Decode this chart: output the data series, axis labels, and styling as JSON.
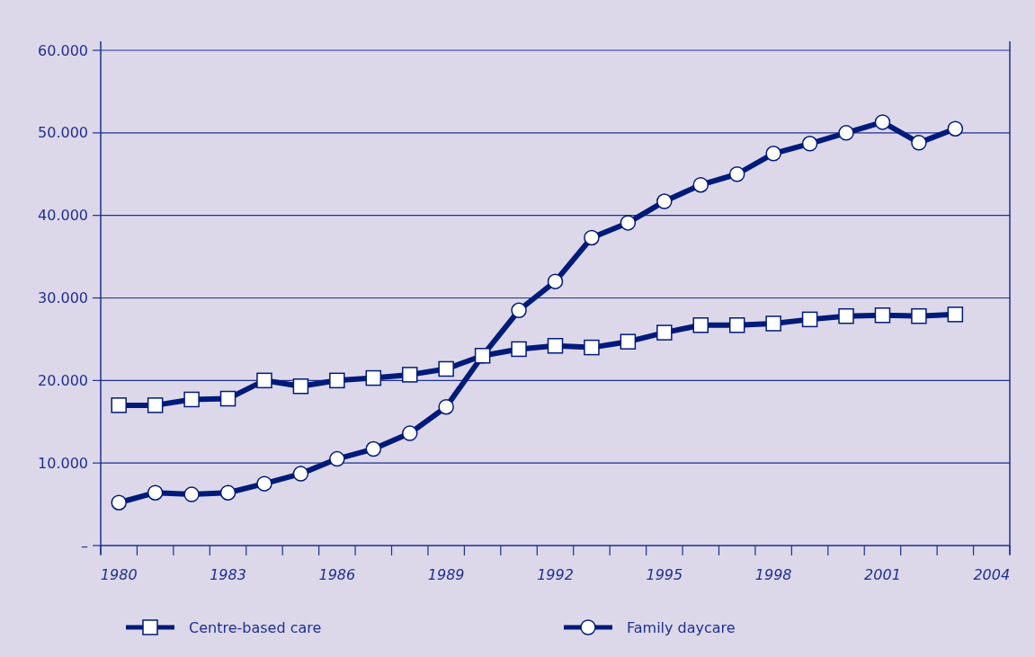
{
  "chart_data": {
    "type": "line",
    "x": [
      1980,
      1981,
      1982,
      1983,
      1984,
      1985,
      1986,
      1987,
      1988,
      1989,
      1990,
      1991,
      1992,
      1993,
      1994,
      1995,
      1996,
      1997,
      1998,
      1999,
      2000,
      2001,
      2002,
      2003
    ],
    "series": [
      {
        "name": "Centre-based care",
        "color": "#001a7a",
        "marker": "square",
        "values": [
          17000,
          17000,
          17700,
          17800,
          20000,
          19300,
          20000,
          20300,
          20700,
          21400,
          23000,
          23800,
          24200,
          24000,
          24700,
          25800,
          26700,
          26700,
          26900,
          27400,
          27800,
          27900,
          27800,
          28000
        ]
      },
      {
        "name": "Family daycare",
        "color": "#001a7a",
        "marker": "circle",
        "values": [
          5200,
          6400,
          6200,
          6400,
          7500,
          8700,
          10500,
          11700,
          13600,
          16800,
          23000,
          28500,
          32000,
          37300,
          39100,
          41700,
          43700,
          45000,
          47500,
          48700,
          50000,
          51300,
          48800,
          50500
        ]
      }
    ],
    "xlim": [
      1979.5,
      2004.5
    ],
    "xticks": [
      {
        "value": 1979.5,
        "label": null
      },
      1980,
      {
        "value": 1980.5,
        "label": null
      },
      {
        "value": 1981.5,
        "label": null
      },
      {
        "value": 1982.5,
        "label": null
      },
      1983,
      {
        "value": 1983.5,
        "label": null
      },
      {
        "value": 1984.5,
        "label": null
      },
      {
        "value": 1985.5,
        "label": null
      },
      1986,
      {
        "value": 1986.5,
        "label": null
      },
      {
        "value": 1987.5,
        "label": null
      },
      {
        "value": 1988.5,
        "label": null
      },
      1989,
      {
        "value": 1989.5,
        "label": null
      },
      {
        "value": 1990.5,
        "label": null
      },
      {
        "value": 1991.5,
        "label": null
      },
      1992,
      {
        "value": 1992.5,
        "label": null
      },
      {
        "value": 1993.5,
        "label": null
      },
      {
        "value": 1994.5,
        "label": null
      },
      1995,
      {
        "value": 1995.5,
        "label": null
      },
      {
        "value": 1996.5,
        "label": null
      },
      {
        "value": 1997.5,
        "label": null
      },
      1998,
      {
        "value": 1998.5,
        "label": null
      },
      {
        "value": 1999.5,
        "label": null
      },
      {
        "value": 2000.5,
        "label": null
      },
      2001,
      {
        "value": 2001.5,
        "label": null
      },
      {
        "value": 2002.5,
        "label": null
      },
      {
        "value": 2003.5,
        "label": null
      },
      2004,
      {
        "value": 2004.5,
        "label": null
      }
    ],
    "ylim": [
      0,
      60000
    ],
    "yticks": [
      {
        "value": 0,
        "label": "–"
      },
      {
        "value": 10000,
        "label": "10.000"
      },
      {
        "value": 20000,
        "label": "20.000"
      },
      {
        "value": 30000,
        "label": "30.000"
      },
      {
        "value": 40000,
        "label": "40.000"
      },
      {
        "value": 50000,
        "label": "50.000"
      },
      {
        "value": 60000,
        "label": "60.000"
      }
    ],
    "grid": "y",
    "legend": "bottom",
    "line_style": "solid"
  }
}
